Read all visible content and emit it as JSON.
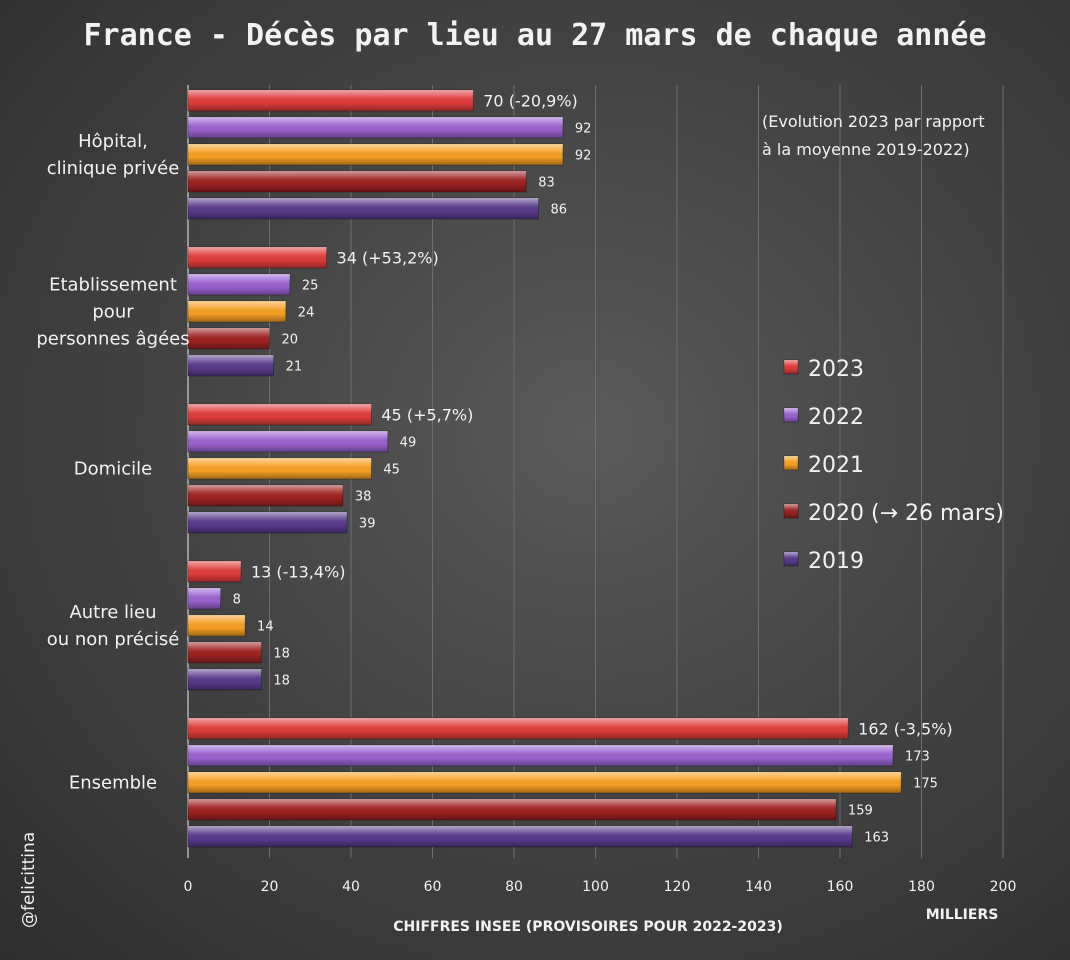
{
  "chart_data": {
    "type": "bar",
    "orientation": "horizontal",
    "title": "France - Décès par lieu au 27 mars de chaque année",
    "categories": [
      "Hôpital,\nclinique privée",
      "Etablissement\npour\npersonnes âgées",
      "Domicile",
      "Autre lieu\nou non précisé",
      "Ensemble"
    ],
    "series": [
      {
        "name": "2023",
        "values": [
          70,
          34,
          45,
          13,
          162
        ],
        "labels": [
          "70 (-20,9%)",
          "34 (+53,2%)",
          "45 (+5,7%)",
          "13 (-13,4%)",
          "162 (-3,5%)"
        ],
        "color": "#e03c3c"
      },
      {
        "name": "2022",
        "values": [
          92,
          25,
          49,
          8,
          173
        ],
        "labels": [
          "92",
          "25",
          "49",
          "8",
          "173"
        ],
        "color": "#9a62d0"
      },
      {
        "name": "2021",
        "values": [
          92,
          24,
          45,
          14,
          175
        ],
        "labels": [
          "92",
          "24",
          "45",
          "14",
          "175"
        ],
        "color": "#f5a022"
      },
      {
        "name": "2020 (→ 26 mars)",
        "values": [
          83,
          20,
          38,
          18,
          159
        ],
        "labels": [
          "83",
          "20",
          "38",
          "18",
          "159"
        ],
        "color": "#9e2222"
      },
      {
        "name": "2019",
        "values": [
          86,
          21,
          39,
          18,
          163
        ],
        "labels": [
          "86",
          "21",
          "39",
          "18",
          "163"
        ],
        "color": "#5a3a8c"
      }
    ],
    "xlim": [
      0,
      200
    ],
    "xticks": [
      "0",
      "20",
      "40",
      "60",
      "80",
      "100",
      "120",
      "140",
      "160",
      "180",
      "200"
    ],
    "xlabel": "CHIFFRES INSEE (PROVISOIRES POUR 2022-2023)",
    "unit_label": "MILLIERS",
    "note": [
      "(Evolution 2023 par rapport",
      "à la moyenne 2019-2022)"
    ],
    "legend_position": "right",
    "grid": "vertical",
    "credit": "@felicittina"
  }
}
